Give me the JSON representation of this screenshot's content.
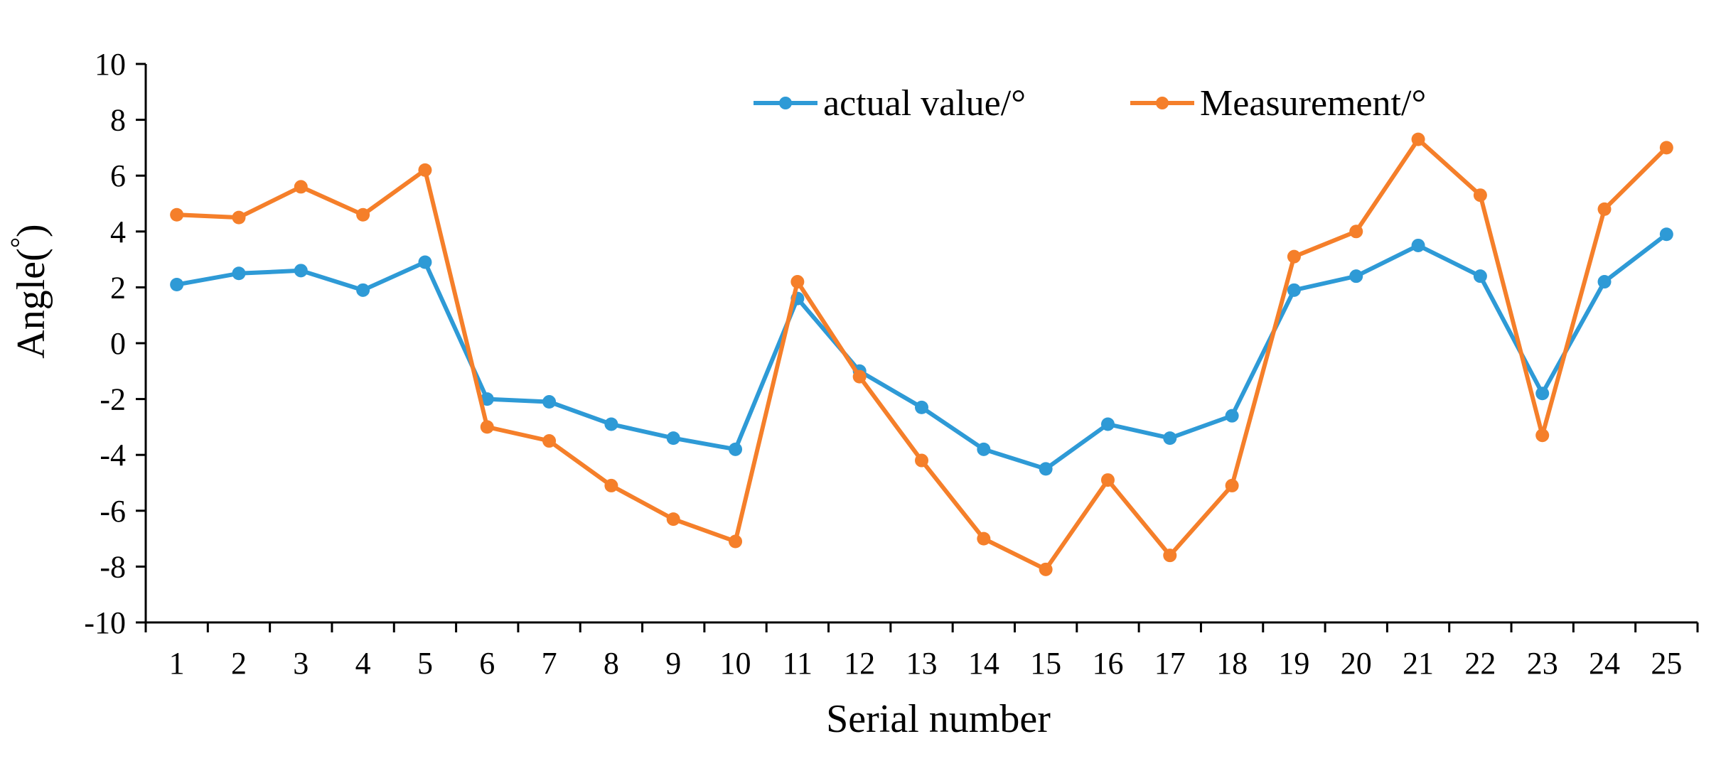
{
  "chart_data": {
    "type": "line",
    "title": "",
    "xlabel": "Serial number",
    "ylabel": "Angle(°)",
    "ylabel_parts": {
      "prefix": "Angle(",
      "degree": "°",
      "suffix": ")"
    },
    "ylim": [
      -10,
      10
    ],
    "y_ticks": [
      "-10",
      "-8",
      "-6",
      "-4",
      "-2",
      "0",
      "2",
      "4",
      "6",
      "8",
      "10"
    ],
    "categories": [
      "1",
      "2",
      "3",
      "4",
      "5",
      "6",
      "7",
      "8",
      "9",
      "10",
      "11",
      "12",
      "13",
      "14",
      "15",
      "16",
      "17",
      "18",
      "19",
      "20",
      "21",
      "22",
      "23",
      "24",
      "25"
    ],
    "grid": false,
    "legend_position": "top-right",
    "series": [
      {
        "name": "actual value/°",
        "color": "#2E9AD6",
        "values": [
          2.1,
          2.5,
          2.6,
          1.9,
          2.9,
          -2.0,
          -2.1,
          -2.9,
          -3.4,
          -3.8,
          1.6,
          -1.0,
          -2.3,
          -3.8,
          -4.5,
          -2.9,
          -3.4,
          -2.6,
          1.9,
          2.4,
          3.5,
          2.4,
          -1.8,
          2.2,
          3.9
        ]
      },
      {
        "name": "Measurement/°",
        "color": "#F57F2A",
        "values": [
          4.6,
          4.5,
          5.6,
          4.6,
          6.2,
          -3.0,
          -3.5,
          -5.1,
          -6.3,
          -7.1,
          2.2,
          -1.2,
          -4.2,
          -7.0,
          -8.1,
          -4.9,
          -7.6,
          -5.1,
          3.1,
          4.0,
          7.3,
          5.3,
          -3.3,
          4.8,
          7.0
        ]
      }
    ]
  }
}
